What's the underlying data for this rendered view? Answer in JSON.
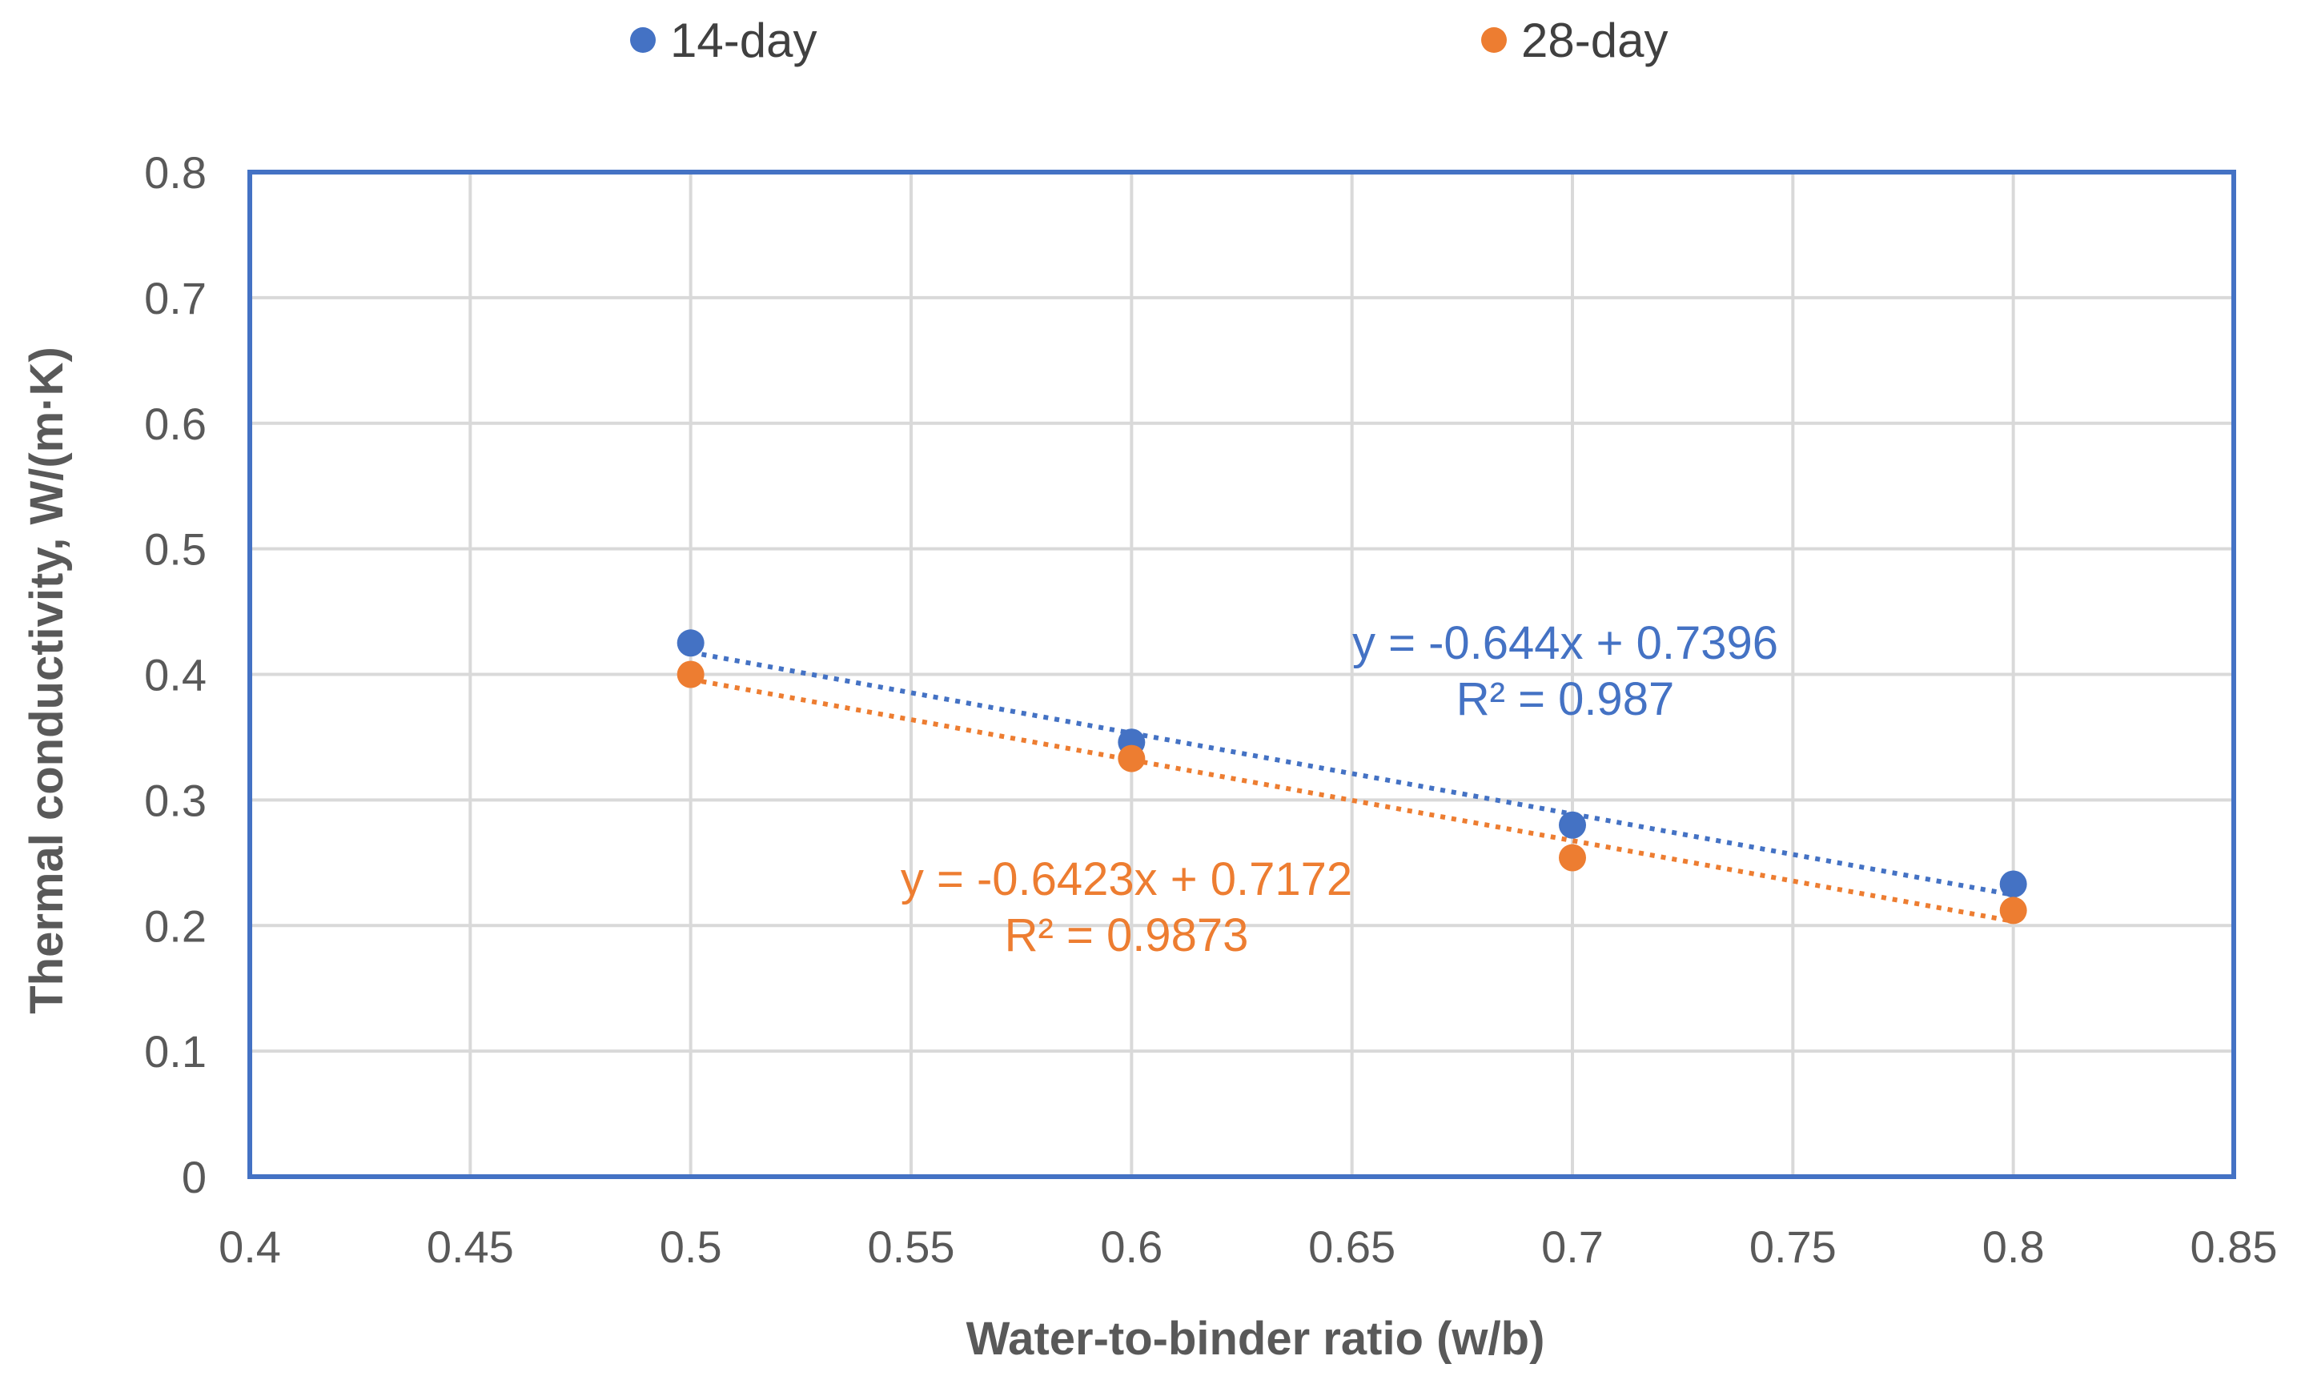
{
  "chart_data": {
    "type": "scatter",
    "title": "",
    "xlabel": "Water-to-binder ratio (w/b)",
    "ylabel": "Thermal conductivity, W/(m·K)",
    "xlim": [
      0.4,
      0.85
    ],
    "ylim": [
      0,
      0.8
    ],
    "x_ticks": [
      0.4,
      0.45,
      0.5,
      0.55,
      0.6,
      0.65,
      0.7,
      0.75,
      0.8,
      0.85
    ],
    "y_ticks": [
      0,
      0.1,
      0.2,
      0.3,
      0.4,
      0.5,
      0.6,
      0.7,
      0.8
    ],
    "x_tick_labels": [
      "0.4",
      "0.45",
      "0.5",
      "0.55",
      "0.6",
      "0.65",
      "0.7",
      "0.75",
      "0.8",
      "0.85"
    ],
    "y_tick_labels": [
      "0",
      "0.1",
      "0.2",
      "0.3",
      "0.4",
      "0.5",
      "0.6",
      "0.7",
      "0.8"
    ],
    "grid": true,
    "legend_position": "top",
    "series": [
      {
        "name": "14-day",
        "color": "#4472C4",
        "x": [
          0.5,
          0.6,
          0.7,
          0.8
        ],
        "y": [
          0.425,
          0.346,
          0.28,
          0.233
        ],
        "trendline": {
          "slope": -0.644,
          "intercept": 0.7396,
          "x_range": [
            0.5,
            0.8
          ]
        },
        "equation": "y = -0.644x + 0.7396",
        "r2": "R² = 0.987"
      },
      {
        "name": "28-day",
        "color": "#ED7D31",
        "x": [
          0.5,
          0.6,
          0.7,
          0.8
        ],
        "y": [
          0.4,
          0.333,
          0.254,
          0.212
        ],
        "trendline": {
          "slope": -0.6423,
          "intercept": 0.7172,
          "x_range": [
            0.5,
            0.8
          ]
        },
        "equation": "y = -0.6423x + 0.7172",
        "r2": "R² = 0.9873"
      }
    ],
    "plot_border_color": "#4472C4",
    "grid_color": "#D9D9D9"
  }
}
